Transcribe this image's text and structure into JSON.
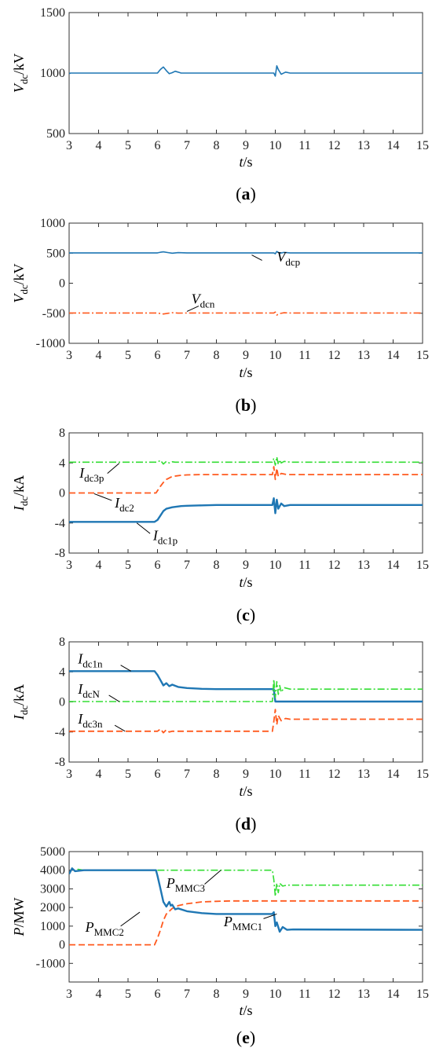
{
  "chart_data": [
    {
      "id": "a",
      "type": "line",
      "panel_label": "a",
      "xlabel": "t",
      "xunit": "/s",
      "ylabel": "V",
      "ylabel_sub": "dc",
      "yunit": "/kV",
      "xlim": [
        3,
        15
      ],
      "ylim": [
        500,
        1500
      ],
      "xticks": [
        3,
        4,
        5,
        6,
        7,
        8,
        9,
        10,
        11,
        12,
        13,
        14,
        15
      ],
      "yticks": [
        500,
        1000,
        1500
      ],
      "series": [
        {
          "color": "#1f77b4",
          "dash": "solid",
          "width": 1.6,
          "x": [
            3,
            3.05,
            3.3,
            6.0,
            6.1,
            6.2,
            6.3,
            6.4,
            6.5,
            6.6,
            6.7,
            6.8,
            7.0,
            9.95,
            10.0,
            10.05,
            10.1,
            10.2,
            10.35,
            10.5,
            10.7,
            11.0,
            15
          ],
          "y": [
            995,
            1000,
            1000,
            1000,
            1030,
            1050,
            1020,
            995,
            1003,
            1015,
            1008,
            1000,
            1000,
            1000,
            975,
            1060,
            1030,
            990,
            1008,
            1000,
            1000,
            1000,
            1000
          ]
        }
      ],
      "annotations": []
    },
    {
      "id": "b",
      "type": "line",
      "panel_label": "b",
      "xlabel": "t",
      "xunit": "/s",
      "ylabel": "V",
      "ylabel_sub": "dc",
      "yunit": "/kV",
      "xlim": [
        3,
        15
      ],
      "ylim": [
        -1000,
        1000
      ],
      "xticks": [
        3,
        4,
        5,
        6,
        7,
        8,
        9,
        10,
        11,
        12,
        13,
        14,
        15
      ],
      "yticks": [
        -1000,
        -500,
        0,
        500,
        1000
      ],
      "series": [
        {
          "color": "#1f77b4",
          "dash": "solid",
          "width": 1.6,
          "x": [
            3,
            6.0,
            6.1,
            6.2,
            6.35,
            6.5,
            6.7,
            7.0,
            9.95,
            10.0,
            10.05,
            10.15,
            10.3,
            10.5,
            15
          ],
          "y": [
            505,
            505,
            515,
            522,
            510,
            500,
            508,
            505,
            505,
            490,
            528,
            500,
            512,
            505,
            505
          ]
        },
        {
          "color": "#ff5a1f",
          "dash": "dashdot",
          "width": 1.6,
          "x": [
            3,
            6.0,
            6.1,
            6.2,
            6.35,
            6.5,
            6.7,
            7.0,
            9.95,
            10.0,
            10.05,
            10.15,
            10.3,
            10.5,
            15
          ],
          "y": [
            -495,
            -495,
            -505,
            -512,
            -500,
            -490,
            -498,
            -495,
            -495,
            -480,
            -530,
            -505,
            -492,
            -495,
            -495
          ]
        }
      ],
      "annotations": [
        {
          "main": "V",
          "sub": "dcp",
          "x": 10.05,
          "y": 360,
          "lx1": 9.2,
          "ly1": 470,
          "lx2": 9.55,
          "ly2": 380
        },
        {
          "main": "V",
          "sub": "dcn",
          "x": 7.15,
          "y": -340,
          "lx1": 7.0,
          "ly1": -470,
          "lx2": 7.4,
          "ly2": -380
        }
      ]
    },
    {
      "id": "c",
      "type": "line",
      "panel_label": "c",
      "xlabel": "t",
      "xunit": "/s",
      "ylabel": "I",
      "ylabel_sub": "dc",
      "yunit": "/kA",
      "xlim": [
        3,
        15
      ],
      "ylim": [
        -8,
        8
      ],
      "xticks": [
        3,
        4,
        5,
        6,
        7,
        8,
        9,
        10,
        11,
        12,
        13,
        14,
        15
      ],
      "yticks": [
        -8,
        -4,
        0,
        4,
        8
      ],
      "series": [
        {
          "color": "#33dd33",
          "dash": "dashdot",
          "width": 1.6,
          "x": [
            3,
            6.0,
            6.1,
            6.2,
            6.3,
            6.4,
            6.5,
            6.6,
            9.9,
            9.95,
            10.0,
            10.05,
            10.1,
            10.15,
            10.2,
            10.3,
            10.5,
            15
          ],
          "y": [
            4.1,
            4.1,
            4.35,
            3.85,
            4.2,
            4.0,
            4.15,
            4.1,
            4.1,
            4.6,
            3.7,
            4.8,
            3.8,
            4.4,
            4.0,
            4.2,
            4.1,
            4.1
          ]
        },
        {
          "color": "#ff5a1f",
          "dash": "dashed",
          "width": 1.8,
          "x": [
            3,
            5.95,
            6.0,
            6.1,
            6.2,
            6.3,
            6.5,
            6.8,
            7.0,
            7.5,
            9.9,
            9.95,
            10.0,
            10.05,
            10.1,
            10.2,
            10.4,
            15
          ],
          "y": [
            0,
            0,
            0.3,
            0.9,
            1.4,
            1.8,
            2.2,
            2.35,
            2.4,
            2.45,
            2.45,
            3.5,
            1.8,
            3.3,
            2.2,
            2.6,
            2.45,
            2.45
          ]
        },
        {
          "color": "#1f77b4",
          "dash": "solid",
          "width": 2.4,
          "x": [
            3,
            5.9,
            6.0,
            6.1,
            6.2,
            6.3,
            6.5,
            6.8,
            7.0,
            7.5,
            8.0,
            9.9,
            9.95,
            10.0,
            10.05,
            10.1,
            10.2,
            10.3,
            10.5,
            15
          ],
          "y": [
            -3.85,
            -3.85,
            -3.6,
            -3.0,
            -2.4,
            -2.1,
            -1.9,
            -1.75,
            -1.7,
            -1.65,
            -1.6,
            -1.6,
            -0.7,
            -2.7,
            -0.9,
            -2.1,
            -1.4,
            -1.75,
            -1.6,
            -1.6
          ]
        }
      ],
      "annotations": [
        {
          "main": "I",
          "sub": "dc3p",
          "x": 3.35,
          "y": 2.05,
          "lx1": 4.3,
          "ly1": 2.6,
          "lx2": 4.7,
          "ly2": 3.95
        },
        {
          "main": "I",
          "sub": "dc2",
          "x": 4.55,
          "y": -1.95,
          "lx1": 4.45,
          "ly1": -1.0,
          "lx2": 3.85,
          "ly2": -0.1
        },
        {
          "main": "I",
          "sub": "dc1p",
          "x": 5.85,
          "y": -6.3,
          "lx1": 5.75,
          "ly1": -5.4,
          "lx2": 5.3,
          "ly2": -4.0
        }
      ]
    },
    {
      "id": "d",
      "type": "line",
      "panel_label": "d",
      "xlabel": "t",
      "xunit": "/s",
      "ylabel": "I",
      "ylabel_sub": "dc",
      "yunit": "/kA",
      "xlim": [
        3,
        15
      ],
      "ylim": [
        -8,
        8
      ],
      "xticks": [
        3,
        4,
        5,
        6,
        7,
        8,
        9,
        10,
        11,
        12,
        13,
        14,
        15
      ],
      "yticks": [
        -8,
        -4,
        0,
        4,
        8
      ],
      "series": [
        {
          "color": "#1f77b4",
          "dash": "solid",
          "width": 2.4,
          "x": [
            3,
            5.9,
            6.0,
            6.1,
            6.2,
            6.3,
            6.4,
            6.5,
            6.7,
            7.0,
            7.5,
            8.0,
            9.9,
            9.95,
            10.0,
            15
          ],
          "y": [
            4.1,
            4.1,
            3.6,
            2.9,
            2.2,
            2.5,
            2.1,
            2.3,
            2.0,
            1.85,
            1.75,
            1.7,
            1.7,
            1.7,
            0.05,
            0.05
          ]
        },
        {
          "color": "#33dd33",
          "dash": "dashdot",
          "width": 1.6,
          "x": [
            3,
            9.9,
            9.95,
            10.0,
            10.05,
            10.1,
            10.15,
            10.2,
            10.3,
            10.5,
            15
          ],
          "y": [
            0.05,
            0.05,
            3.0,
            0.6,
            2.7,
            1.0,
            2.2,
            1.3,
            1.9,
            1.7,
            1.7
          ]
        },
        {
          "color": "#ff5a1f",
          "dash": "dashed",
          "width": 1.8,
          "x": [
            3,
            6.0,
            6.1,
            6.2,
            6.3,
            6.4,
            6.5,
            9.9,
            9.95,
            10.0,
            10.05,
            10.1,
            10.2,
            10.35,
            10.5,
            15
          ],
          "y": [
            -3.9,
            -3.9,
            -3.6,
            -4.1,
            -3.7,
            -4.0,
            -3.9,
            -3.9,
            -2.6,
            -1.0,
            -3.0,
            -1.8,
            -2.5,
            -2.2,
            -2.3,
            -2.3
          ]
        }
      ],
      "annotations": [
        {
          "main": "I",
          "sub": "dc1n",
          "x": 3.3,
          "y": 5.1,
          "lx1": 4.75,
          "ly1": 4.9,
          "lx2": 5.1,
          "ly2": 4.1
        },
        {
          "main": "I",
          "sub": "dcN",
          "x": 3.3,
          "y": 1.1,
          "lx1": 4.35,
          "ly1": 0.9,
          "lx2": 4.7,
          "ly2": 0.05
        },
        {
          "main": "I",
          "sub": "dc3n",
          "x": 3.3,
          "y": -2.9,
          "lx1": 4.55,
          "ly1": -3.1,
          "lx2": 4.9,
          "ly2": -3.9
        }
      ]
    },
    {
      "id": "e",
      "type": "line",
      "panel_label": "e",
      "xlabel": "t",
      "xunit": "/s",
      "ylabel": "P",
      "ylabel_sub": "",
      "yunit": "/MW",
      "xlim": [
        3,
        15
      ],
      "ylim": [
        -2000,
        5000
      ],
      "xticks": [
        3,
        4,
        5,
        6,
        7,
        8,
        9,
        10,
        11,
        12,
        13,
        14,
        15
      ],
      "yticks": [
        -1000,
        0,
        1000,
        2000,
        3000,
        4000,
        5000
      ],
      "series": [
        {
          "color": "#33dd33",
          "dash": "dashdot",
          "width": 1.6,
          "x": [
            3,
            3.1,
            3.2,
            3.3,
            3.5,
            9.9,
            9.95,
            10.0,
            10.05,
            10.1,
            10.15,
            10.25,
            10.4,
            15
          ],
          "y": [
            3800,
            4100,
            3950,
            4050,
            4000,
            4000,
            3500,
            2600,
            3300,
            2800,
            3300,
            3150,
            3200,
            3200
          ]
        },
        {
          "color": "#ff5a1f",
          "dash": "dashed",
          "width": 1.8,
          "x": [
            3,
            5.9,
            6.0,
            6.1,
            6.2,
            6.3,
            6.5,
            6.7,
            7.0,
            7.5,
            8.0,
            8.5,
            15
          ],
          "y": [
            0,
            0,
            350,
            800,
            1300,
            1650,
            1950,
            2100,
            2200,
            2300,
            2330,
            2350,
            2350
          ]
        },
        {
          "color": "#1f77b4",
          "dash": "solid",
          "width": 2.4,
          "x": [
            3,
            3.1,
            3.2,
            3.5,
            5.95,
            6.0,
            6.1,
            6.2,
            6.3,
            6.4,
            6.45,
            6.5,
            6.6,
            6.7,
            7.0,
            7.5,
            8.0,
            9.9,
            9.95,
            10.0,
            10.05,
            10.15,
            10.25,
            10.4,
            10.6,
            15
          ],
          "y": [
            3800,
            4100,
            3950,
            4000,
            4000,
            3700,
            3000,
            2300,
            2050,
            2300,
            2100,
            2150,
            1900,
            1950,
            1800,
            1700,
            1650,
            1650,
            1750,
            1000,
            1200,
            700,
            950,
            800,
            820,
            800
          ]
        }
      ],
      "annotations": [
        {
          "main": "P",
          "sub": "MMC3",
          "x": 6.3,
          "y": 3050,
          "lx1": 7.6,
          "ly1": 3250,
          "lx2": 8.15,
          "ly2": 4000
        },
        {
          "main": "P",
          "sub": "MMC2",
          "x": 3.55,
          "y": 700,
          "lx1": 4.75,
          "ly1": 1000,
          "lx2": 5.4,
          "ly2": 1750
        },
        {
          "main": "P",
          "sub": "MMC1",
          "x": 8.25,
          "y": 1000,
          "lx1": 9.6,
          "ly1": 1400,
          "lx2": 10.05,
          "ly2": 1650
        }
      ]
    }
  ]
}
